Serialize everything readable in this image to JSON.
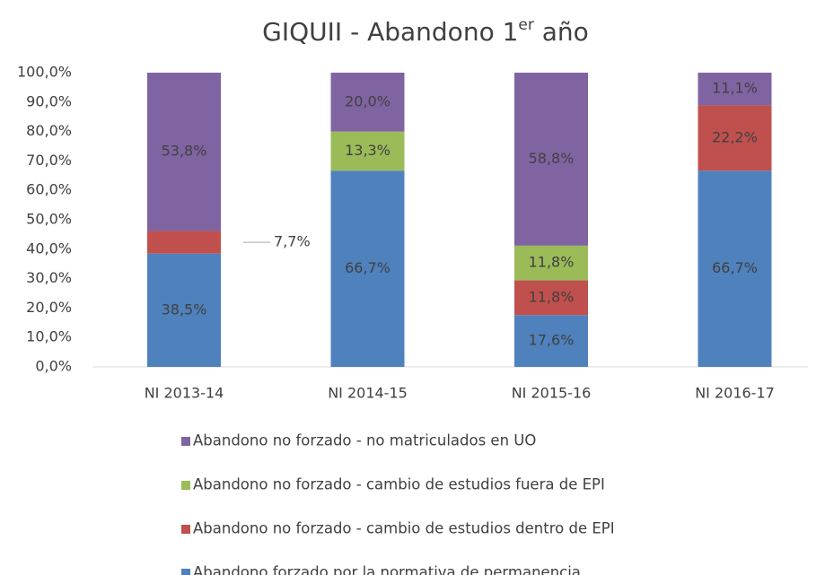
{
  "chart_data": {
    "type": "stacked_bar",
    "title": {
      "text": "GIQUII - Abandono 1",
      "superscript": "er",
      "suffix": " año"
    },
    "categories": [
      "NI 2013-14",
      "NI 2014-15",
      "NI 2015-16",
      "NI 2016-17"
    ],
    "series": [
      {
        "name": "Abandono forzado por la normativa de permanencia",
        "color": "#4f81bd",
        "values": [
          38.5,
          66.7,
          17.6,
          66.7
        ],
        "value_labels": [
          "38,5%",
          "66,7%",
          "17,6%",
          "66,7%"
        ]
      },
      {
        "name": "Abandono no forzado - cambio de estudios dentro de EPI",
        "color": "#c0504d",
        "values": [
          7.7,
          0,
          11.8,
          22.2
        ],
        "value_labels": [
          "7,7%",
          null,
          "11,8%",
          "22,2%"
        ]
      },
      {
        "name": "Abandono no forzado - cambio de estudios fuera de EPI",
        "color": "#9bbb59",
        "values": [
          0,
          13.3,
          11.8,
          0
        ],
        "value_labels": [
          null,
          "13,3%",
          "11,8%",
          null
        ]
      },
      {
        "name": "Abandono no forzado - no matriculados en UO",
        "color": "#8064a2",
        "values": [
          53.8,
          20.0,
          58.8,
          11.1
        ],
        "value_labels": [
          "53,8%",
          "20,0%",
          "58,8%",
          "11,1%"
        ]
      }
    ],
    "ylim": [
      0,
      100
    ],
    "yticks": [
      {
        "value": 0,
        "label": "0,0%"
      },
      {
        "value": 10,
        "label": "10,0%"
      },
      {
        "value": 20,
        "label": "20,0%"
      },
      {
        "value": 30,
        "label": "30,0%"
      },
      {
        "value": 40,
        "label": "40,0%"
      },
      {
        "value": 50,
        "label": "50,0%"
      },
      {
        "value": 60,
        "label": "60,0%"
      },
      {
        "value": 70,
        "label": "70,0%"
      },
      {
        "value": 80,
        "label": "80,0%"
      },
      {
        "value": 90,
        "label": "90,0%"
      },
      {
        "value": 100,
        "label": "100,0%"
      }
    ],
    "grid": false
  }
}
